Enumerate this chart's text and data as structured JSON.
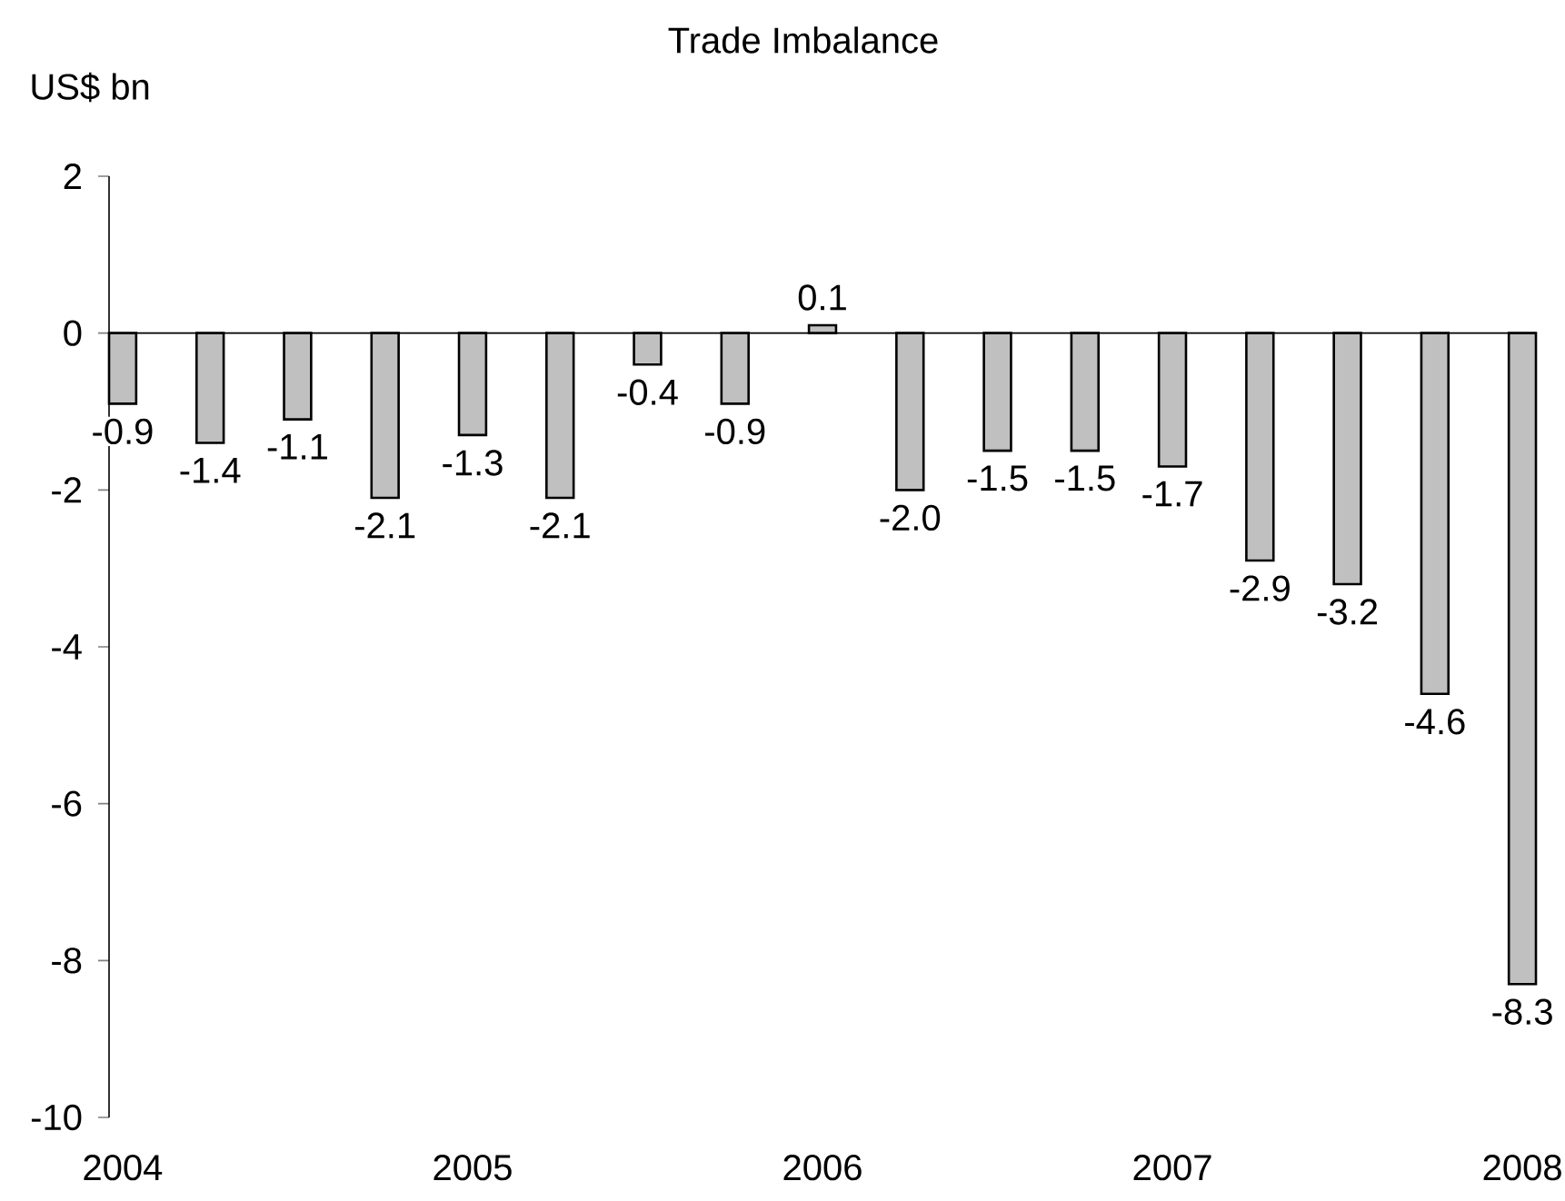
{
  "chart_data": {
    "type": "bar",
    "title": "Trade Imbalance",
    "ylabel": "US$ bn",
    "categories": [
      "2004",
      null,
      null,
      null,
      "2005",
      null,
      null,
      null,
      "2006",
      null,
      null,
      null,
      "2007",
      null,
      null,
      null,
      "2008"
    ],
    "values": [
      -0.9,
      -1.4,
      -1.1,
      -2.1,
      -1.3,
      -2.1,
      -0.4,
      -0.9,
      0.1,
      -2.0,
      -1.5,
      -1.5,
      -1.7,
      -2.9,
      -3.2,
      -4.6,
      -8.3
    ],
    "value_labels": [
      "-0.9",
      "-1.4",
      "-1.1",
      "-2.1",
      "-1.3",
      "-2.1",
      "-0.4",
      "-0.9",
      "0.1",
      "-2.0",
      "-1.5",
      "-1.5",
      "-1.7",
      "-2.9",
      "-3.2",
      "-4.6",
      "-8.3"
    ],
    "color": "#c0c0c0",
    "ylim": [
      -10,
      2
    ],
    "yticks": [
      -10,
      -8,
      -6,
      -4,
      -2,
      0,
      2
    ]
  }
}
